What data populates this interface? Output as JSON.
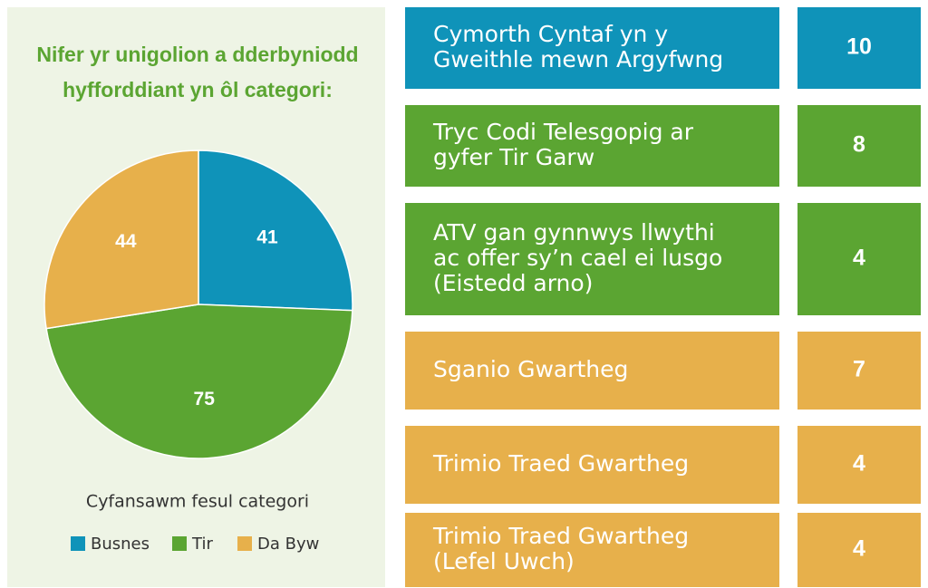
{
  "chart_data": {
    "type": "pie",
    "title": [
      "Nifer yr unigolion a dderbyniodd",
      "hyfforddiant yn ôl categori:"
    ],
    "categories": [
      "Busnes",
      "Tir",
      "Da Byw"
    ],
    "values": [
      41,
      75,
      44
    ],
    "colors": [
      "#0f93b9",
      "#5ba532",
      "#e7b04b"
    ],
    "legend_title": "Cyfansawm fesul categori",
    "legend": "bottom"
  },
  "courses": [
    {
      "lines": [
        "Cymorth Cyntaf yn y",
        "Gweithle mewn Argyfwng"
      ],
      "value": 10,
      "color": "#0f93b9"
    },
    {
      "lines": [
        "Tryc Codi Telesgopig ar",
        "gyfer Tir Garw"
      ],
      "value": 8,
      "color": "#5ba532"
    },
    {
      "lines": [
        "ATV gan gynnwys llwythi",
        "ac offer sy’n cael ei lusgo",
        "(Eistedd arno)"
      ],
      "value": 4,
      "color": "#5ba532"
    },
    {
      "lines": [
        "Sganio Gwartheg"
      ],
      "value": 7,
      "color": "#e7b04b"
    },
    {
      "lines": [
        "Trimio Traed Gwartheg"
      ],
      "value": 4,
      "color": "#e7b04b"
    },
    {
      "lines": [
        "Trimio Traed Gwartheg",
        "(Lefel Uwch)"
      ],
      "value": 4,
      "color": "#e7b04b"
    }
  ]
}
